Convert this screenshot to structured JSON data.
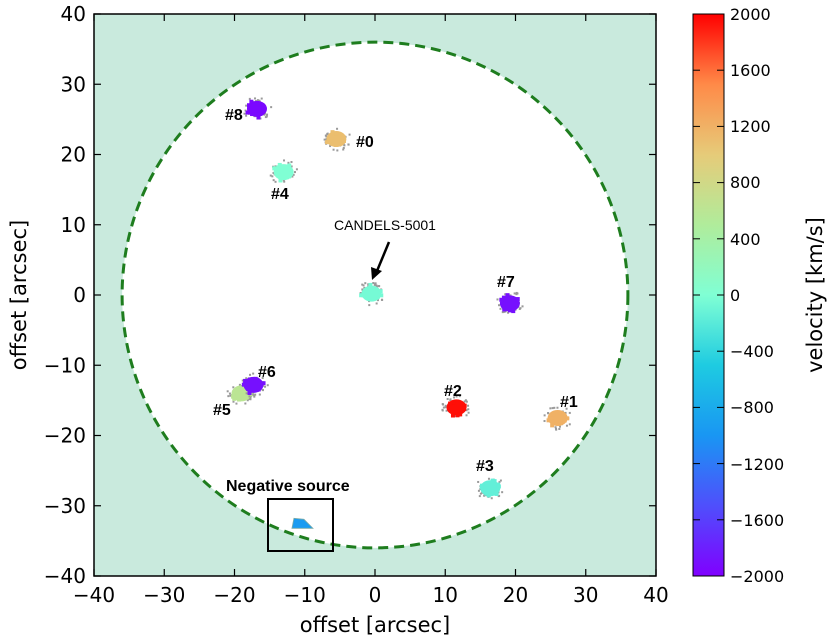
{
  "chart_data": {
    "type": "scatter",
    "xlabel": "offset [arcsec]",
    "ylabel": "offset [arcsec]",
    "xlim": [
      -40,
      40
    ],
    "ylim": [
      -40,
      40
    ],
    "xticks": [
      "−40",
      "−30",
      "−20",
      "−10",
      "0",
      "10",
      "20",
      "30",
      "40"
    ],
    "yticks": [
      "40",
      "30",
      "20",
      "10",
      "0",
      "−10",
      "−20",
      "−30",
      "−40"
    ],
    "field_circle": {
      "center": [
        0,
        0
      ],
      "radius": 36,
      "style": "dashed"
    },
    "background_color": "#c9eadd",
    "inside_color": "#ffffff",
    "circle_color": "#1e7d1e",
    "sources": [
      {
        "label": "#0",
        "x": -5.5,
        "y": 22.2,
        "velocity": 1100
      },
      {
        "label": "#1",
        "x": 26,
        "y": -17.5,
        "velocity": 1200
      },
      {
        "label": "#2",
        "x": 11.6,
        "y": -16,
        "velocity": 1950
      },
      {
        "label": "#3",
        "x": 16.4,
        "y": -27.5,
        "velocity": -150
      },
      {
        "label": "#4",
        "x": -13,
        "y": 17.5,
        "velocity": 0
      },
      {
        "label": "#5",
        "x": -19,
        "y": -14,
        "velocity": 600
      },
      {
        "label": "#6",
        "x": -17.3,
        "y": -12.8,
        "velocity": -1900
      },
      {
        "label": "#7",
        "x": 19.2,
        "y": -1.2,
        "velocity": -1900
      },
      {
        "label": "#8",
        "x": -16.8,
        "y": 26.5,
        "velocity": -1950
      },
      {
        "label": "CANDELS-5001",
        "x": -0.5,
        "y": 0.2,
        "velocity": -50
      }
    ],
    "negative_source": {
      "label": "Negative source",
      "x": -10.4,
      "y": -32.5,
      "velocity": -950
    },
    "annotation": {
      "text": "CANDELS-5001",
      "target": [
        0,
        2.3
      ]
    },
    "colorbar": {
      "label": "velocity [km/s]",
      "min": -2000,
      "max": 2000,
      "ticks": [
        "2000",
        "1600",
        "1200",
        "800",
        "400",
        "0",
        "−400",
        "−800",
        "−1200",
        "−1600",
        "−2000"
      ],
      "colormap": "rainbow"
    }
  }
}
